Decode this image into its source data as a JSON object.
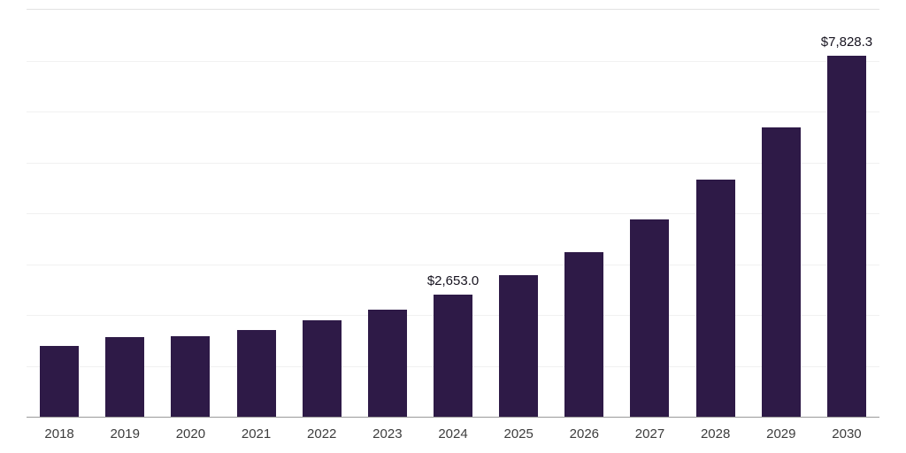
{
  "chart_data": {
    "type": "bar",
    "title": "",
    "xlabel": "",
    "ylabel": "",
    "categories": [
      "2018",
      "2019",
      "2020",
      "2021",
      "2022",
      "2023",
      "2024",
      "2025",
      "2026",
      "2027",
      "2028",
      "2029",
      "2030"
    ],
    "values": [
      1540,
      1730,
      1750,
      1880,
      2090,
      2320,
      2653.0,
      3070,
      3570,
      4280,
      5150,
      6280,
      7828.3
    ],
    "data_labels": [
      "",
      "",
      "",
      "",
      "",
      "",
      "$2,653.0",
      "",
      "",
      "",
      "",
      "",
      "$7,828.3"
    ],
    "ylim": [
      0,
      8830
    ],
    "grid": true,
    "gridline_divisions": 8,
    "legend": false,
    "bar_color": "#2E1A47",
    "gridline_color": "#f1f1f1",
    "top_border_color": "#e2e2e2",
    "axis_line_color": "#9a9a9a",
    "label_color": "#3d3d3d",
    "value_label_color": "#16131f"
  }
}
